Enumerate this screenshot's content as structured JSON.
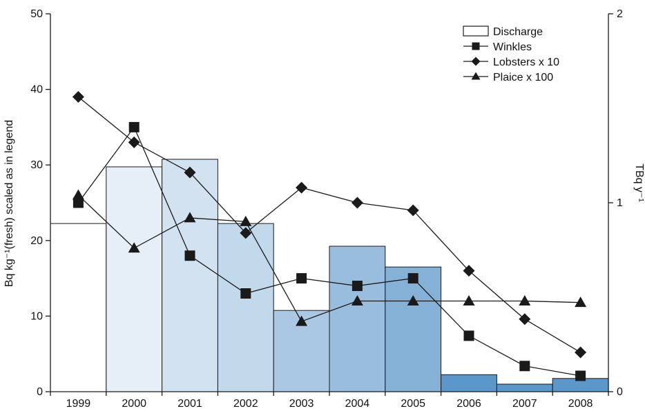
{
  "chart_data": {
    "type": "bar",
    "categories": [
      "1999",
      "2000",
      "2001",
      "2002",
      "2003",
      "2004",
      "2005",
      "2006",
      "2007",
      "2008"
    ],
    "bars": {
      "name": "Discharge",
      "axis": "right",
      "values": [
        0.89,
        1.19,
        1.23,
        0.89,
        0.43,
        0.77,
        0.66,
        0.09,
        0.04,
        0.07
      ],
      "colors": [
        "#ffffff",
        "#e6eff8",
        "#d3e2f0",
        "#c2d8eb",
        "#aac8e3",
        "#99bddd",
        "#86b1d6",
        "#5c97c9",
        "#5c97c9",
        "#5c97c9"
      ]
    },
    "series": [
      {
        "name": "Winkles",
        "marker": "square",
        "values": [
          25,
          35,
          18,
          13,
          15,
          14,
          15,
          7.4,
          3.4,
          2.1
        ]
      },
      {
        "name": "Lobsters x 10",
        "marker": "diamond",
        "values": [
          39,
          33,
          29,
          21,
          27,
          25,
          24,
          16,
          9.6,
          5.2
        ]
      },
      {
        "name": "Plaice x 100",
        "marker": "triangle",
        "values": [
          26,
          19,
          23,
          22.5,
          9.3,
          12,
          12,
          12,
          12,
          11.8
        ]
      }
    ],
    "ylabel": "Bq kg⁻¹(fresh) scaled as in legend",
    "y2label": "TBq y⁻¹",
    "ylim": [
      0,
      50
    ],
    "y2lim": [
      0,
      2
    ],
    "yticks": [
      "0",
      "10",
      "20",
      "30",
      "40",
      "50"
    ],
    "y2ticks": [
      "0",
      "1",
      "2"
    ],
    "legend_position": "top-right",
    "grid": false
  }
}
